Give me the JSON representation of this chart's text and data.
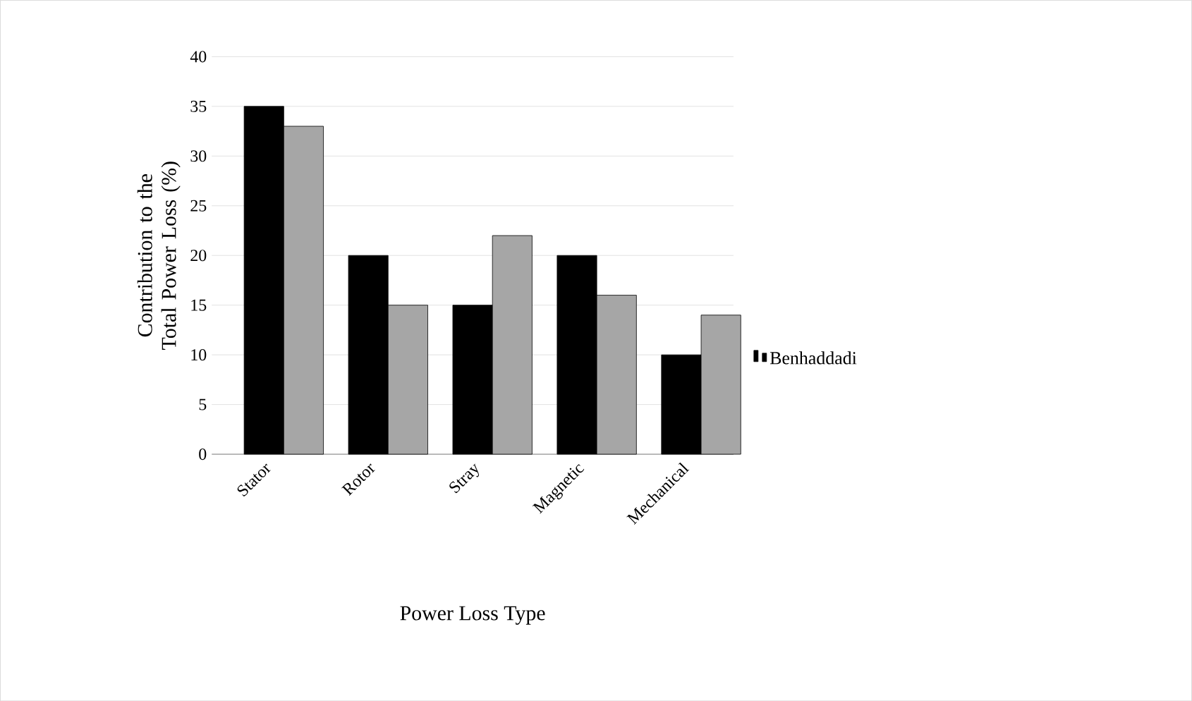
{
  "chart_data": {
    "type": "bar",
    "xlabel": "Power Loss Type",
    "ylabel": "Contribution to the Total Power Loss (%)",
    "categories": [
      "Stator",
      "Rotor",
      "Stray",
      "Magnetic",
      "Mechanical"
    ],
    "series": [
      {
        "name": "Benhaddadi",
        "color": "#000000",
        "values": [
          35,
          20,
          15,
          20,
          10
        ]
      },
      {
        "color": "#a6a6a6",
        "values": [
          33,
          15,
          22,
          16,
          14
        ]
      }
    ],
    "ylim": [
      0,
      40
    ],
    "yticks": [
      0,
      5,
      10,
      15,
      20,
      25,
      30,
      35,
      40
    ],
    "grid": "y",
    "legend": "right"
  }
}
